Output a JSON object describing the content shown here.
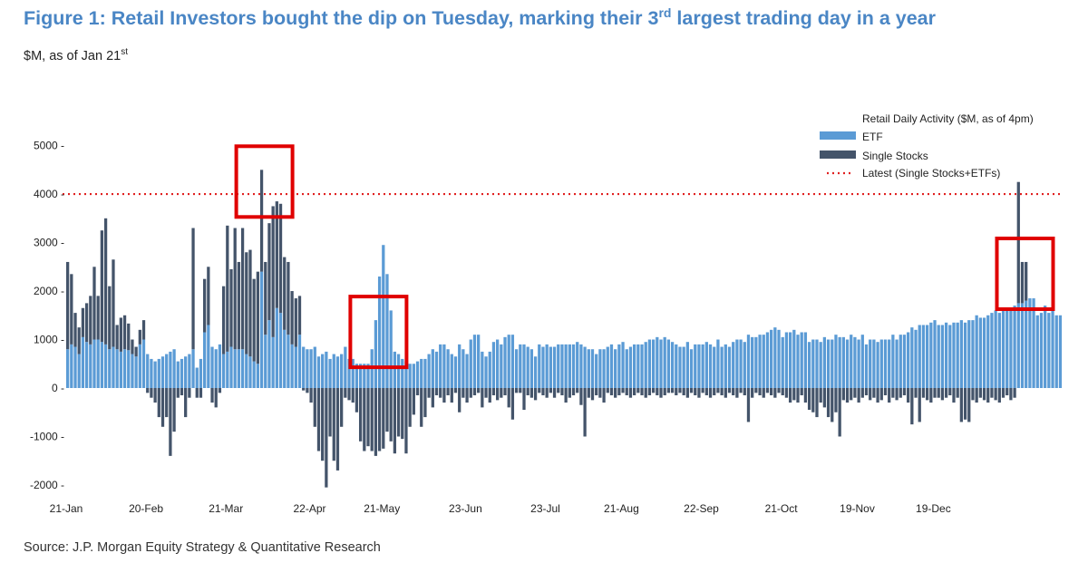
{
  "header": {
    "title_part1": "Figure 1: Retail Investors bought the dip on Tuesday, marking their 3",
    "title_sup": "rd",
    "title_part2": " largest trading day in a year",
    "subtitle_main": "$M, as of Jan 21",
    "subtitle_sup": "st"
  },
  "footer": {
    "source": "Source: J.P. Morgan Equity Strategy & Quantitative Research"
  },
  "colors": {
    "etf": "#5b9bd5",
    "single_stocks": "#44546a",
    "latest_line": "#e02020",
    "highlight_box": "#e00000",
    "title": "#4a86c5"
  },
  "chart_data": {
    "type": "bar",
    "stacked": true,
    "title": "Retail Daily Activity ($M, as of 4pm)",
    "xlabel": "",
    "ylabel": "$M",
    "ylim": [
      -2000,
      5000
    ],
    "yticks": [
      5000,
      4000,
      3000,
      2000,
      1000,
      0,
      -1000,
      -2000
    ],
    "ytick_labels": [
      "5000 -",
      "4000 -",
      "3000 -",
      "2000 -",
      "1000 -",
      "0 -",
      "-1000 -",
      "-2000 -"
    ],
    "xtick_labels": [
      "21-Jan",
      "20-Feb",
      "21-Mar",
      "22-Apr",
      "21-May",
      "23-Jun",
      "23-Jul",
      "21-Aug",
      "22-Sep",
      "21-Oct",
      "19-Nov",
      "19-Dec"
    ],
    "xtick_day_index": [
      0,
      21,
      42,
      64,
      83,
      105,
      126,
      146,
      167,
      188,
      208,
      228
    ],
    "legend": {
      "title": "Retail Daily Activity ($M, as of 4pm)",
      "etf_label": "ETF",
      "single_label": "Single Stocks",
      "latest_label": "Latest (Single Stocks+ETFs)",
      "position": "top-right"
    },
    "latest_value": 4000,
    "highlighted_days": [
      51,
      81,
      251
    ],
    "series": [
      {
        "name": "ETF",
        "values": [
          800,
          900,
          850,
          700,
          1050,
          950,
          900,
          1000,
          1000,
          950,
          900,
          800,
          850,
          800,
          750,
          800,
          780,
          700,
          650,
          900,
          1000,
          700,
          600,
          550,
          600,
          650,
          700,
          750,
          800,
          550,
          600,
          650,
          700,
          800,
          420,
          600,
          1150,
          1300,
          850,
          800,
          900,
          700,
          750,
          850,
          800,
          800,
          800,
          700,
          650,
          550,
          500,
          2400,
          1100,
          1400,
          1050,
          1650,
          1550,
          1200,
          1100,
          900,
          850,
          1100,
          850,
          800,
          800,
          850,
          650,
          700,
          750,
          600,
          700,
          650,
          700,
          850,
          600,
          600,
          500,
          500,
          500,
          500,
          800,
          1400,
          2300,
          2950,
          2350,
          1600,
          750,
          700,
          600,
          550,
          500,
          500,
          550,
          600,
          600,
          700,
          800,
          750,
          900,
          900,
          800,
          700,
          650,
          900,
          800,
          700,
          1000,
          1100,
          1100,
          750,
          650,
          750,
          950,
          1000,
          900,
          1050,
          1100,
          1100,
          800,
          900,
          900,
          850,
          800,
          650,
          900,
          850,
          900,
          850,
          850,
          900,
          900,
          900,
          900,
          900,
          950,
          900,
          850,
          800,
          800,
          700,
          800,
          800,
          850,
          900,
          800,
          900,
          950,
          800,
          850,
          900,
          900,
          900,
          950,
          1000,
          1000,
          1050,
          1000,
          1050,
          1000,
          950,
          900,
          850,
          850,
          950,
          800,
          900,
          900,
          900,
          950,
          900,
          850,
          1000,
          850,
          900,
          850,
          950,
          1000,
          1000,
          950,
          1100,
          1050,
          1050,
          1100,
          1100,
          1150,
          1200,
          1250,
          1200,
          1050,
          1150,
          1150,
          1200,
          1100,
          1150,
          1150,
          950,
          1000,
          1000,
          950,
          1050,
          1000,
          1000,
          1100,
          1050,
          1050,
          1000,
          1100,
          1050,
          1000,
          1100,
          900,
          1000,
          1000,
          950,
          1000,
          1000,
          1000,
          1100,
          1000,
          1100,
          1100,
          1150,
          1250,
          1200,
          1300,
          1300,
          1300,
          1350,
          1400,
          1300,
          1300,
          1350,
          1300,
          1350,
          1350,
          1400,
          1350,
          1400,
          1400,
          1500,
          1450,
          1450,
          1500,
          1550,
          1600,
          1550,
          1600,
          1650,
          1650,
          1700,
          1750,
          1750,
          1800,
          1850,
          1850,
          1500,
          1550,
          1700,
          1550,
          1600,
          1500,
          1500
        ]
      },
      {
        "name": "Single Stocks",
        "values": [
          1800,
          1450,
          700,
          550,
          600,
          800,
          1000,
          1500,
          900,
          2300,
          2600,
          1300,
          1800,
          500,
          700,
          700,
          550,
          300,
          200,
          300,
          400,
          -100,
          -200,
          -300,
          -600,
          -800,
          -600,
          -1400,
          -900,
          -200,
          -150,
          -600,
          -200,
          2500,
          -200,
          -200,
          1100,
          1200,
          -300,
          -400,
          -100,
          1400,
          2600,
          1600,
          2500,
          1800,
          2500,
          2100,
          2200,
          1700,
          1900,
          2100,
          1500,
          2000,
          2700,
          2200,
          2250,
          1500,
          1500,
          1100,
          1000,
          800,
          -50,
          -100,
          -300,
          -800,
          -1300,
          -1500,
          -2050,
          -1000,
          -1500,
          -1700,
          -800,
          -200,
          -250,
          -300,
          -500,
          -1100,
          -1300,
          -1200,
          -1300,
          -1400,
          -1300,
          -1250,
          -900,
          -1100,
          -1350,
          -1000,
          -1050,
          -1350,
          -800,
          -550,
          -150,
          -800,
          -600,
          -200,
          -400,
          -150,
          -200,
          -300,
          -150,
          -300,
          -100,
          -500,
          -200,
          -300,
          -200,
          -150,
          -100,
          -400,
          -200,
          -300,
          -150,
          -250,
          -200,
          -150,
          -400,
          -650,
          -100,
          -100,
          -450,
          -150,
          -200,
          -250,
          -100,
          -150,
          -200,
          -100,
          -200,
          -100,
          -150,
          -300,
          -200,
          -150,
          -100,
          -350,
          -1000,
          -200,
          -250,
          -150,
          -200,
          -300,
          -100,
          -150,
          -200,
          -150,
          -100,
          -150,
          -200,
          -150,
          -100,
          -150,
          -200,
          -150,
          -100,
          -150,
          -200,
          -150,
          -100,
          -100,
          -150,
          -100,
          -150,
          -200,
          -100,
          -150,
          -200,
          -100,
          -150,
          -200,
          -150,
          -100,
          -150,
          -200,
          -100,
          -150,
          -200,
          -100,
          -150,
          -700,
          -200,
          -100,
          -150,
          -200,
          -100,
          -150,
          -200,
          -100,
          -150,
          -200,
          -300,
          -250,
          -300,
          -150,
          -300,
          -450,
          -500,
          -600,
          -300,
          -400,
          -600,
          -700,
          -500,
          -1000,
          -250,
          -300,
          -250,
          -200,
          -300,
          -200,
          -150,
          -250,
          -200,
          -300,
          -250,
          -150,
          -300,
          -200,
          -250,
          -200,
          -150,
          -300,
          -750,
          -200,
          -700,
          -200,
          -250,
          -300,
          -200,
          -200,
          -250,
          -200,
          -150,
          -300,
          -200,
          -700,
          -650,
          -700,
          -250,
          -300,
          -200,
          -250,
          -300,
          -200,
          -250,
          -300,
          -200,
          -150,
          -250,
          -200,
          2500,
          850,
          800
        ]
      }
    ]
  }
}
